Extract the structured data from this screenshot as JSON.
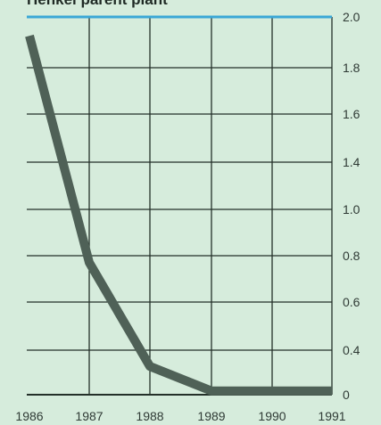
{
  "chart_data": {
    "type": "line",
    "title": "Henkel parent plant",
    "x": [
      1986,
      1987,
      1988,
      1989,
      1990,
      1991
    ],
    "x_tick_labels": [
      "1986",
      "1987",
      "1988",
      "1989",
      "1990",
      "1991"
    ],
    "y_tick_labels": [
      "2.0",
      "1.8",
      "1.6",
      "1.4",
      "1.0",
      "0.8",
      "0.6",
      "0.4",
      "0"
    ],
    "series": [
      {
        "values": [
          1.9,
          0.7,
          0.15,
          0.02,
          0.02,
          0.02
        ]
      }
    ],
    "ylim": [
      0,
      2.0
    ],
    "grid": true,
    "colors": {
      "background": "#d6ecdc",
      "grid": "#243029",
      "line": "#4f6157",
      "top_rule": "#3ba7d6",
      "text": "#2f3a35"
    }
  }
}
